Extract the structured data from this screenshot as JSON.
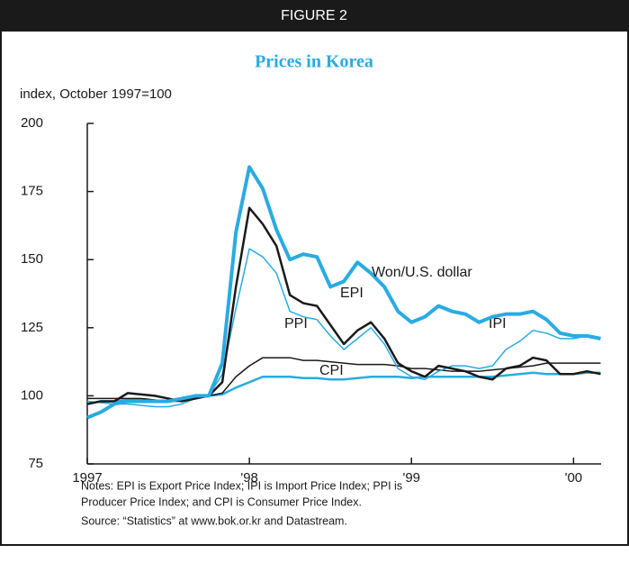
{
  "figure_label": "FIGURE 2",
  "chart_data": {
    "type": "line",
    "title": "Prices in Korea",
    "y_label": "index, October 1997=100",
    "x": [
      1997,
      1997.083,
      1997.167,
      1997.25,
      1997.333,
      1997.417,
      1997.5,
      1997.583,
      1997.667,
      1997.75,
      1997.833,
      1997.917,
      1998,
      1998.083,
      1998.167,
      1998.25,
      1998.333,
      1998.417,
      1998.5,
      1998.583,
      1998.667,
      1998.75,
      1998.833,
      1998.917,
      1999,
      1999.083,
      1999.167,
      1999.25,
      1999.333,
      1999.417,
      1999.5,
      1999.583,
      1999.667,
      1999.75,
      1999.833,
      1999.917,
      2000,
      2000.083,
      2000.167
    ],
    "xlim": [
      1997,
      2000.17
    ],
    "xticks": [
      1997,
      {
        "value": 1998,
        "label": "'98"
      },
      {
        "value": 1999,
        "label": "'99"
      },
      {
        "value": 2000,
        "label": "'00"
      }
    ],
    "ylim": [
      75,
      200
    ],
    "yticks": [
      75,
      100,
      125,
      150,
      175,
      200
    ],
    "series": [
      {
        "name": "CPI",
        "color": "#29abe2",
        "values": [
          97,
          98,
          98,
          98.5,
          98.5,
          98,
          98,
          98.5,
          99.5,
          100,
          100.5,
          103,
          105,
          107,
          107,
          107,
          106.5,
          106.5,
          106,
          106,
          106.5,
          107,
          107,
          107,
          106.5,
          107,
          107,
          107,
          107,
          107,
          107,
          107.5,
          108,
          108.5,
          108,
          108,
          108,
          108.5,
          108.5
        ]
      },
      {
        "name": "PPI",
        "color": "#1a1a1a",
        "values": [
          99,
          99,
          99,
          99,
          99,
          98.5,
          98,
          98,
          99,
          100,
          101,
          107,
          111,
          114,
          114,
          114,
          113,
          113,
          112.5,
          112,
          111.5,
          111.5,
          111.5,
          111,
          110,
          110,
          109.5,
          109,
          109,
          109,
          109.5,
          110,
          110.5,
          111,
          112,
          112,
          112,
          112,
          112
        ]
      },
      {
        "name": "IPI",
        "color": "#29abe2",
        "values": [
          98,
          97.5,
          97,
          97,
          96.5,
          96,
          96,
          97,
          99,
          100,
          108,
          132,
          154,
          151,
          145,
          131,
          129,
          128,
          122,
          117,
          121,
          125,
          119,
          110,
          107,
          106,
          109,
          111,
          111,
          110,
          111,
          117,
          120,
          124,
          123,
          121,
          121,
          122,
          121
        ]
      },
      {
        "name": "EPI",
        "color": "#1a1a1a",
        "values": [
          97,
          98,
          98,
          101,
          100.5,
          100,
          99,
          98,
          99,
          100,
          105,
          140,
          169,
          163,
          155,
          137,
          134,
          133,
          126,
          119,
          124,
          127,
          121,
          112,
          109,
          107,
          111,
          110,
          109,
          107,
          106,
          110,
          111,
          114,
          113,
          108,
          108,
          109,
          108
        ]
      },
      {
        "name": "Won/U.S. dollar",
        "color": "#29abe2",
        "values": [
          92,
          94,
          97,
          98,
          98,
          98,
          98,
          99,
          100,
          100,
          112,
          160,
          184,
          176,
          161,
          150,
          152,
          151,
          140,
          142,
          149,
          145,
          140,
          131,
          127,
          129,
          133,
          131,
          130,
          127,
          129,
          130,
          130,
          131,
          128,
          123,
          122,
          122,
          121
        ]
      }
    ]
  },
  "notes": [
    "Notes: EPI is Export Price Index; IPI is Import Price Index; PPI is",
    "Producer Price Index; and CPI is Consumer Price Index.",
    "Source: “Statistics” at www.bok.or.kr and Datastream."
  ]
}
